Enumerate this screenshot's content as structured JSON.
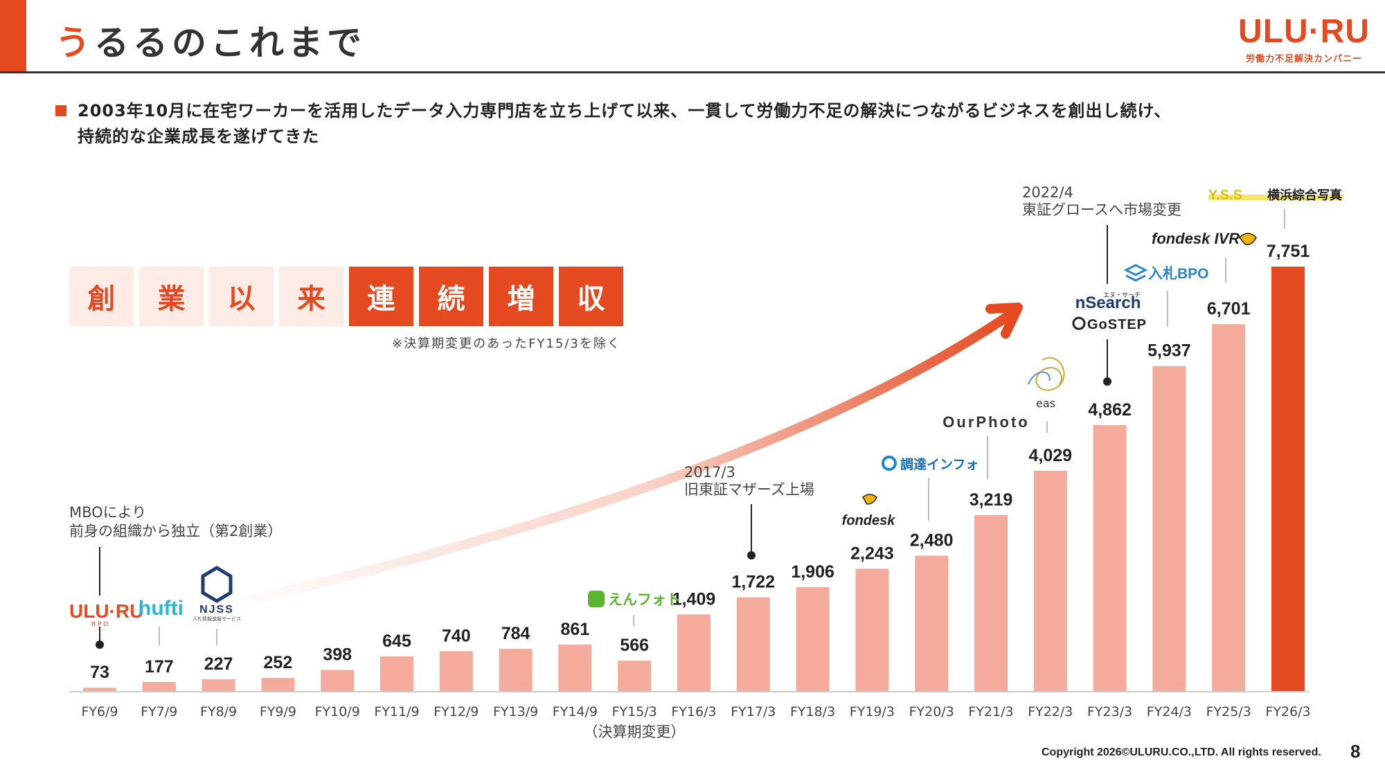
{
  "header": {
    "title_first": "う",
    "title_rest": "るるのこれまで",
    "logo_text": "ULU·RU",
    "logo_sub": "労働力不足解決カンパニー"
  },
  "bullet": {
    "line1": "2003年10月に在宅ワーカーを活用したデータ入力専門店を立ち上げて以来、一貫して労働力不足の解決につながるビジネスを創出し続け、",
    "line2": "持続的な企業成長を遂げてきた"
  },
  "tagline": {
    "chars_light": [
      "創",
      "業",
      "以",
      "来"
    ],
    "chars_dark": [
      "連",
      "続",
      "増",
      "収"
    ],
    "note": "※決算期変更のあったFY15/3を除く"
  },
  "annotations": {
    "mbo": [
      "MBOにより",
      "前身の組織から独立（第2創業）"
    ],
    "listing_2017": [
      "2017/3",
      "旧東証マザーズ上場"
    ],
    "market_2022": [
      "2022/4",
      "東証グロースへ市場変更"
    ],
    "fy15_note": "（決算期変更）"
  },
  "brands": {
    "uluru_bpo": "ULU·RU",
    "uluru_bpo_sub": "B P O",
    "hufti": "hufti",
    "njss": "NJSS",
    "njss_sub": "入札情報速報サービス",
    "enphoto": "えんフォト",
    "fondesk": "fondesk",
    "choutatsu": "調達インフォ",
    "ourphoto": "OurPhoto",
    "eas": "eas",
    "nsearch": "nSearch",
    "nsearch_sub": "エヌ・サーチ",
    "gostep": "GoSTEP",
    "nyusatsu_bpo": "入札BPO",
    "fondesk_ivr": "fondesk IVR",
    "yss": "Y.S.S",
    "yss_text": "横浜綜合写真"
  },
  "chart_data": {
    "type": "bar",
    "categories": [
      "FY6/9",
      "FY7/9",
      "FY8/9",
      "FY9/9",
      "FY10/9",
      "FY11/9",
      "FY12/9",
      "FY13/9",
      "FY14/9",
      "FY15/3",
      "FY16/3",
      "FY17/3",
      "FY18/3",
      "FY19/3",
      "FY20/3",
      "FY21/3",
      "FY22/3",
      "FY23/3",
      "FY24/3",
      "FY25/3",
      "FY26/3"
    ],
    "values": [
      73,
      177,
      227,
      252,
      398,
      645,
      740,
      784,
      861,
      566,
      1409,
      1722,
      1906,
      2243,
      2480,
      3219,
      4029,
      4862,
      5937,
      6701,
      7751
    ],
    "value_labels": [
      "73",
      "177",
      "227",
      "252",
      "398",
      "645",
      "740",
      "784",
      "861",
      "566",
      "1,409",
      "1,722",
      "1,906",
      "2,243",
      "2,480",
      "3,219",
      "4,029",
      "4,862",
      "5,937",
      "6,701",
      "7,751"
    ],
    "highlight_index": 20,
    "ylim": [
      0,
      7751
    ],
    "grid": false,
    "legend": "none",
    "colors": {
      "bar": "#f4ab9c",
      "highlight": "#e4491f",
      "arrow": "#e4491f"
    }
  },
  "footer": {
    "copyright": "Copyright 2026©ULURU.CO.,LTD. All rights reserved.",
    "page": "8"
  }
}
